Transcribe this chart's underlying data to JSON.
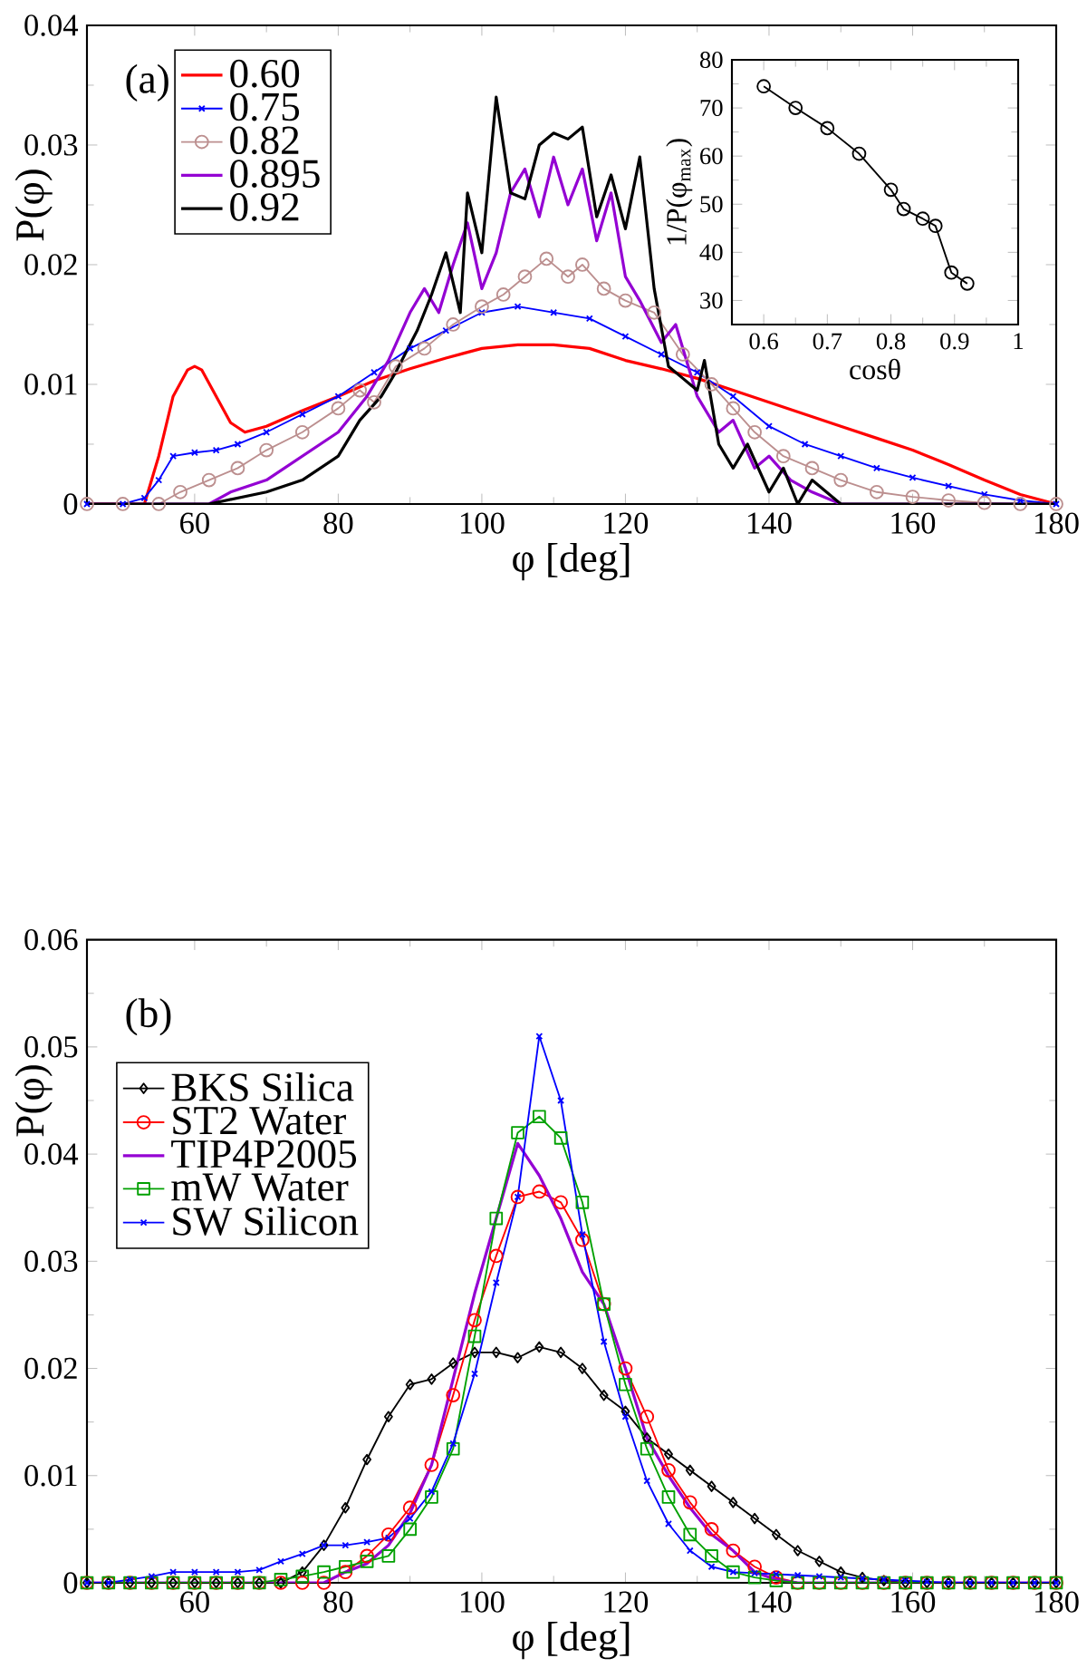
{
  "chart_data": [
    {
      "type": "line",
      "xlabel": "φ [deg]",
      "ylabel": "P(φ)",
      "annotations": [
        "(a)"
      ],
      "legend": "top left",
      "xlim": [
        45,
        180
      ],
      "xticks": [
        60,
        80,
        100,
        120,
        140,
        160,
        180
      ],
      "ylim": [
        0,
        0.04
      ],
      "yticks": [
        0,
        0.01,
        0.02,
        0.03,
        0.04
      ],
      "series": [
        {
          "name": "0.60",
          "color": "#ff0000",
          "marker": "none",
          "x": [
            45,
            50,
            53,
            55,
            57,
            59,
            60,
            61,
            63,
            65,
            67,
            70,
            75,
            80,
            85,
            90,
            95,
            100,
            105,
            110,
            115,
            120,
            125,
            130,
            135,
            140,
            145,
            150,
            155,
            160,
            165,
            170,
            175,
            180
          ],
          "values": [
            0,
            0,
            0,
            0.004,
            0.009,
            0.0112,
            0.0115,
            0.0112,
            0.009,
            0.0068,
            0.006,
            0.0065,
            0.0078,
            0.009,
            0.0103,
            0.0113,
            0.0122,
            0.013,
            0.0133,
            0.0133,
            0.013,
            0.012,
            0.0113,
            0.0105,
            0.0095,
            0.0085,
            0.0075,
            0.0065,
            0.0055,
            0.0045,
            0.0033,
            0.002,
            0.0008,
            0
          ]
        },
        {
          "name": "0.75",
          "color": "#0000ff",
          "marker": "cross",
          "x": [
            45,
            50,
            53,
            55,
            57,
            60,
            63,
            66,
            70,
            75,
            80,
            85,
            90,
            95,
            100,
            105,
            110,
            115,
            120,
            125,
            130,
            135,
            140,
            145,
            150,
            155,
            160,
            165,
            170,
            175,
            180
          ],
          "values": [
            0,
            0,
            0.0005,
            0.002,
            0.004,
            0.0043,
            0.0045,
            0.005,
            0.006,
            0.0075,
            0.009,
            0.011,
            0.013,
            0.0145,
            0.016,
            0.0165,
            0.016,
            0.0155,
            0.014,
            0.0125,
            0.011,
            0.009,
            0.0065,
            0.005,
            0.004,
            0.003,
            0.0022,
            0.0015,
            0.0008,
            0.0003,
            0
          ]
        },
        {
          "name": "0.82",
          "color": "#bc8f8f",
          "marker": "circle",
          "x": [
            45,
            50,
            55,
            58,
            62,
            66,
            70,
            75,
            80,
            83,
            85,
            88,
            92,
            96,
            100,
            103,
            106,
            109,
            112,
            114,
            117,
            120,
            124,
            128,
            132,
            135,
            138,
            142,
            146,
            150,
            155,
            160,
            165,
            170,
            175,
            180
          ],
          "values": [
            0,
            0,
            0,
            0.001,
            0.002,
            0.003,
            0.0045,
            0.006,
            0.008,
            0.0095,
            0.0085,
            0.0115,
            0.013,
            0.015,
            0.0165,
            0.0175,
            0.019,
            0.0205,
            0.019,
            0.02,
            0.018,
            0.017,
            0.016,
            0.0125,
            0.01,
            0.008,
            0.006,
            0.004,
            0.003,
            0.002,
            0.001,
            0.0006,
            0.0003,
            0.0001,
            0,
            0
          ]
        },
        {
          "name": "0.895",
          "color": "#9400d3",
          "marker": "none",
          "x": [
            45,
            55,
            62,
            65,
            70,
            75,
            80,
            84,
            87,
            90,
            92,
            94,
            96,
            98,
            100,
            102,
            104,
            106,
            108,
            110,
            112,
            114,
            116,
            118,
            120,
            122,
            125,
            127,
            130,
            133,
            135,
            138,
            140,
            143,
            146,
            150,
            160,
            180
          ],
          "values": [
            0,
            0,
            0,
            0.001,
            0.002,
            0.004,
            0.006,
            0.009,
            0.012,
            0.016,
            0.018,
            0.016,
            0.02,
            0.0235,
            0.018,
            0.021,
            0.026,
            0.028,
            0.024,
            0.029,
            0.025,
            0.028,
            0.022,
            0.026,
            0.019,
            0.017,
            0.0135,
            0.015,
            0.009,
            0.006,
            0.007,
            0.003,
            0.004,
            0.002,
            0.001,
            0,
            0,
            0
          ]
        },
        {
          "name": "0.92",
          "color": "#000000",
          "marker": "none",
          "x": [
            45,
            62,
            70,
            75,
            80,
            83,
            86,
            88,
            91,
            93,
            95,
            97,
            98,
            100,
            102,
            104,
            106,
            108,
            110,
            112,
            114,
            116,
            118,
            120,
            122,
            124,
            126,
            128,
            130,
            131,
            133,
            135,
            137,
            140,
            142,
            144,
            146,
            150,
            180
          ],
          "values": [
            0,
            0,
            0.001,
            0.002,
            0.004,
            0.007,
            0.009,
            0.011,
            0.0145,
            0.0175,
            0.021,
            0.016,
            0.026,
            0.021,
            0.034,
            0.026,
            0.0255,
            0.03,
            0.031,
            0.0305,
            0.0315,
            0.024,
            0.0275,
            0.023,
            0.029,
            0.018,
            0.0115,
            0.0105,
            0.0095,
            0.012,
            0.005,
            0.003,
            0.005,
            0.001,
            0.003,
            0,
            0.002,
            0,
            0
          ]
        }
      ]
    },
    {
      "type": "line",
      "xlabel": "cosθ",
      "ylabel": "1/P(φ$_{max}$)",
      "xlim": [
        0.55,
        1
      ],
      "xticks": [
        0.6,
        0.7,
        0.8,
        0.9,
        1
      ],
      "ylim": [
        25,
        80
      ],
      "yticks": [
        30,
        40,
        50,
        60,
        70,
        80
      ],
      "series": [
        {
          "color": "#000000",
          "marker": "circle",
          "x": [
            0.6,
            0.65,
            0.7,
            0.75,
            0.8,
            0.82,
            0.85,
            0.87,
            0.895,
            0.92
          ],
          "values": [
            74.5,
            70,
            65.8,
            60.5,
            53,
            49,
            47,
            45.5,
            35.8,
            33.5
          ]
        }
      ]
    },
    {
      "type": "line",
      "xlabel": "φ [deg]",
      "ylabel": "P(φ)",
      "annotations": [
        "(b)"
      ],
      "legend": "left",
      "xlim": [
        45,
        180
      ],
      "xticks": [
        60,
        80,
        100,
        120,
        140,
        160,
        180
      ],
      "ylim": [
        0,
        0.06
      ],
      "yticks": [
        0,
        0.01,
        0.02,
        0.03,
        0.04,
        0.05,
        0.06
      ],
      "x": [
        45,
        48,
        51,
        54,
        57,
        60,
        63,
        66,
        69,
        72,
        75,
        78,
        81,
        84,
        87,
        90,
        93,
        96,
        99,
        102,
        105,
        108,
        111,
        114,
        117,
        120,
        123,
        126,
        129,
        132,
        135,
        138,
        141,
        144,
        147,
        150,
        153,
        156,
        159,
        162,
        165,
        168,
        171,
        174,
        177,
        180
      ],
      "series": [
        {
          "name": "BKS Silica",
          "color": "#000000",
          "marker": "diamond",
          "values": [
            0,
            0,
            0,
            0,
            0,
            0,
            0,
            0,
            0,
            0,
            0.001,
            0.0035,
            0.007,
            0.0115,
            0.0155,
            0.0185,
            0.019,
            0.0205,
            0.0215,
            0.0215,
            0.021,
            0.022,
            0.0215,
            0.02,
            0.0175,
            0.016,
            0.0135,
            0.012,
            0.0105,
            0.009,
            0.0075,
            0.006,
            0.0045,
            0.003,
            0.002,
            0.001,
            0.0005,
            0.0002,
            0,
            0,
            0,
            0,
            0,
            0,
            0,
            0
          ]
        },
        {
          "name": "ST2 Water",
          "color": "#ff0000",
          "marker": "circle",
          "values": [
            0,
            0,
            0,
            0,
            0,
            0,
            0,
            0,
            0,
            0,
            0,
            0,
            0.001,
            0.0025,
            0.0045,
            0.007,
            0.011,
            0.0175,
            0.0245,
            0.0305,
            0.036,
            0.0365,
            0.0355,
            0.032,
            0.026,
            0.02,
            0.0155,
            0.0105,
            0.0075,
            0.005,
            0.003,
            0.0015,
            0.0005,
            0,
            0,
            0,
            0,
            0,
            0,
            0,
            0,
            0,
            0,
            0,
            0,
            0
          ]
        },
        {
          "name": "TIP4P2005",
          "color": "#9400d3",
          "marker": "none",
          "values": [
            0,
            0,
            0,
            0,
            0,
            0,
            0,
            0,
            0,
            0,
            0,
            0,
            0.001,
            0.0018,
            0.0035,
            0.0065,
            0.011,
            0.019,
            0.027,
            0.034,
            0.041,
            0.038,
            0.034,
            0.029,
            0.026,
            0.02,
            0.0135,
            0.01,
            0.007,
            0.0045,
            0.003,
            0.001,
            0.0003,
            0,
            0,
            0,
            0,
            0,
            0,
            0,
            0,
            0,
            0,
            0,
            0,
            0
          ]
        },
        {
          "name": "mW Water",
          "color": "#00a000",
          "marker": "square",
          "values": [
            0,
            0,
            0,
            0,
            0,
            0,
            0,
            0,
            0,
            0.0003,
            0.0006,
            0.001,
            0.0015,
            0.002,
            0.0025,
            0.005,
            0.008,
            0.0125,
            0.023,
            0.034,
            0.042,
            0.0435,
            0.0415,
            0.0355,
            0.026,
            0.0185,
            0.0125,
            0.008,
            0.0045,
            0.0025,
            0.001,
            0.0005,
            0.0002,
            0,
            0,
            0,
            0,
            0,
            0,
            0,
            0,
            0,
            0,
            0,
            0,
            0
          ]
        },
        {
          "name": "SW Silicon",
          "color": "#0000ff",
          "marker": "cross",
          "values": [
            0,
            0,
            0.0003,
            0.0006,
            0.001,
            0.001,
            0.001,
            0.001,
            0.0012,
            0.002,
            0.0027,
            0.0035,
            0.0035,
            0.0038,
            0.0042,
            0.006,
            0.0085,
            0.013,
            0.0195,
            0.028,
            0.036,
            0.051,
            0.045,
            0.0325,
            0.0225,
            0.0155,
            0.0095,
            0.0055,
            0.003,
            0.0015,
            0.001,
            0.0009,
            0.0008,
            0.0007,
            0.0006,
            0.0005,
            0.0004,
            0.0003,
            0.0002,
            0.0001,
            0,
            0,
            0,
            0,
            0,
            0
          ]
        }
      ]
    }
  ]
}
